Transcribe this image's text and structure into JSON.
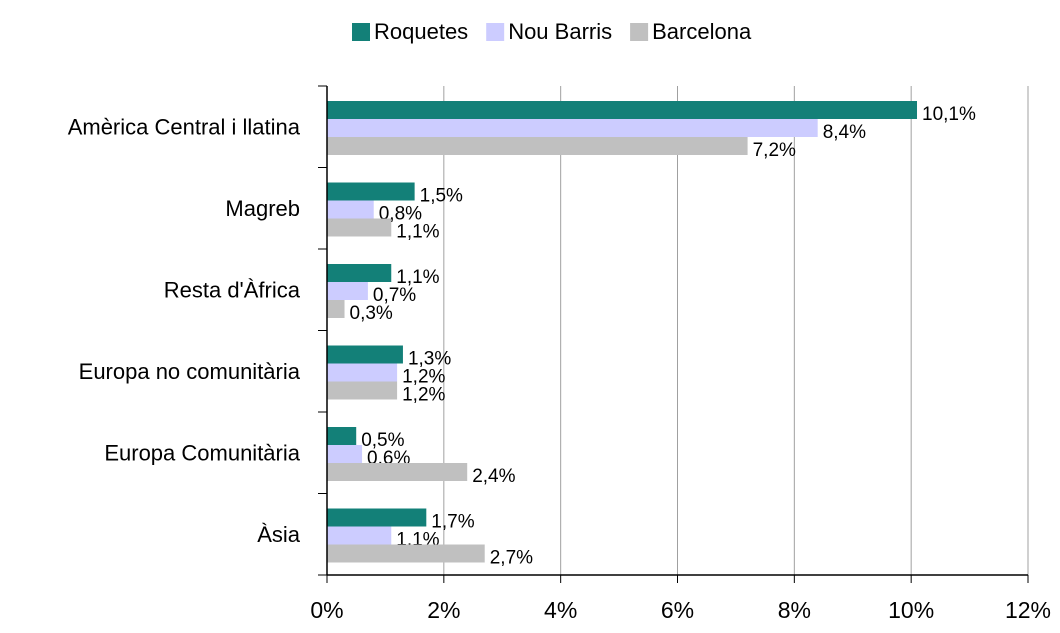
{
  "chart_data": {
    "type": "bar",
    "orientation": "horizontal",
    "categories": [
      "Amèrica Central i llatina",
      "Magreb",
      "Resta d'Àfrica",
      "Europa no comunitària",
      "Europa Comunitària",
      "Àsia"
    ],
    "series": [
      {
        "name": "Roquetes",
        "color": "#138078",
        "values": [
          10.1,
          1.5,
          1.1,
          1.3,
          0.5,
          1.7
        ],
        "value_labels": [
          "10,1%",
          "1,5%",
          "1,1%",
          "1,3%",
          "0,5%",
          "1,7%"
        ]
      },
      {
        "name": "Nou Barris",
        "color": "#ccccff",
        "values": [
          8.4,
          0.8,
          0.7,
          1.2,
          0.6,
          1.1
        ],
        "value_labels": [
          "8,4%",
          "0,8%",
          "0,7%",
          "1,2%",
          "0,6%",
          "1,1%"
        ]
      },
      {
        "name": "Barcelona",
        "color": "#c0c0c0",
        "values": [
          7.2,
          1.1,
          0.3,
          1.2,
          2.4,
          2.7
        ],
        "value_labels": [
          "7,2%",
          "1,1%",
          "0,3%",
          "1,2%",
          "2,4%",
          "2,7%"
        ]
      }
    ],
    "xlim": [
      0,
      12
    ],
    "xticks": [
      {
        "value": 0,
        "label": "0%"
      },
      {
        "value": 2,
        "label": "2%"
      },
      {
        "value": 4,
        "label": "4%"
      },
      {
        "value": 6,
        "label": "6%"
      },
      {
        "value": 8,
        "label": "8%"
      },
      {
        "value": 10,
        "label": "10%"
      },
      {
        "value": 12,
        "label": "12%"
      }
    ],
    "grid": true,
    "legend": "top"
  }
}
